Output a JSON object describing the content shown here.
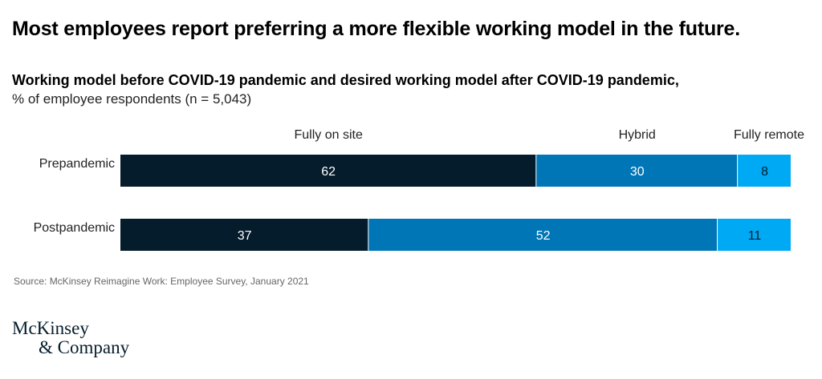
{
  "headline": "Most employees report preferring a more flexible working model in the future.",
  "source": "Source: McKinsey Reimagine Work: Employee Survey, January 2021",
  "logo": {
    "line1": "McKinsey",
    "line2": "& Company"
  },
  "colors": {
    "fully_on_site": "#051c2c",
    "hybrid": "#0076b6",
    "fully_remote": "#00a9f4",
    "label_light": "#ffffff",
    "label_dark": "#051c2c"
  },
  "chart_data": {
    "type": "bar",
    "orientation": "horizontal",
    "stacked": true,
    "title": "Working model before COVID-19 pandemic and desired working model after COVID-19 pandemic,",
    "subtitle": "% of employee respondents (n = 5,043)",
    "categories": [
      "Prepandemic",
      "Postpandemic"
    ],
    "series": [
      {
        "name": "Fully on site",
        "values": [
          62,
          37
        ]
      },
      {
        "name": "Hybrid",
        "values": [
          30,
          52
        ]
      },
      {
        "name": "Fully remote",
        "values": [
          8,
          11
        ]
      }
    ],
    "xlim": [
      0,
      100
    ],
    "legend_position": "top"
  }
}
